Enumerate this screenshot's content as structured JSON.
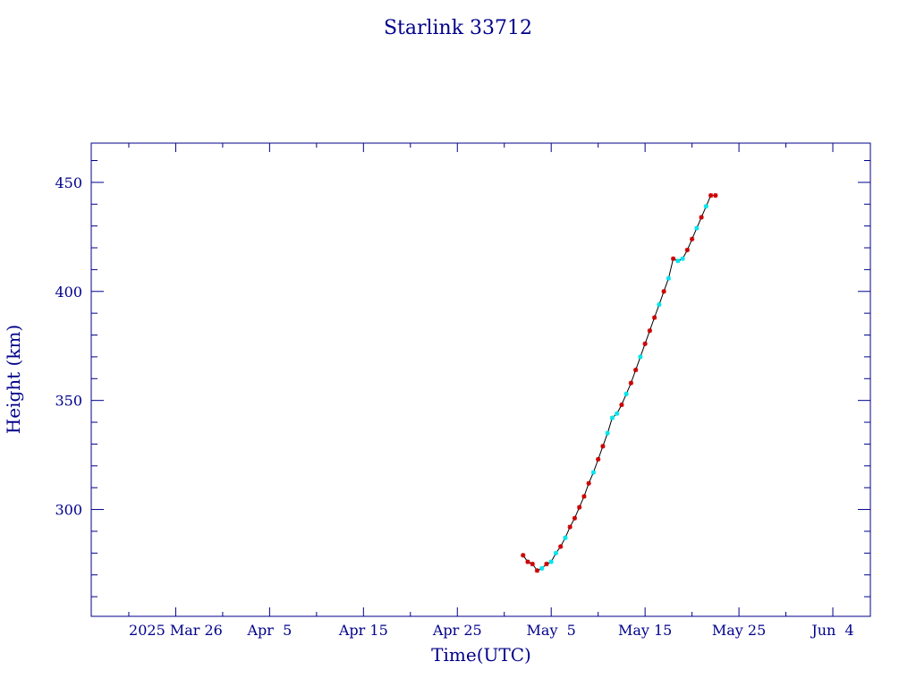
{
  "chart_data": {
    "type": "line",
    "title": "Starlink 33712",
    "xlabel": "Time(UTC)",
    "ylabel": "Height (km)",
    "x_ticks": [
      {
        "date": "2025-03-26",
        "label": "2025 Mar 26"
      },
      {
        "date": "2025-04-05",
        "label": "Apr  5"
      },
      {
        "date": "2025-04-15",
        "label": "Apr 15"
      },
      {
        "date": "2025-04-25",
        "label": "Apr 25"
      },
      {
        "date": "2025-05-05",
        "label": "May  5"
      },
      {
        "date": "2025-05-15",
        "label": "May 15"
      },
      {
        "date": "2025-05-25",
        "label": "May 25"
      },
      {
        "date": "2025-06-04",
        "label": "Jun  4"
      }
    ],
    "y_ticks": [
      300,
      350,
      400,
      450
    ],
    "xlim": [
      "2025-03-17",
      "2025-06-08"
    ],
    "ylim": [
      251,
      468
    ],
    "grid": false,
    "colors": {
      "axis": "#00008b",
      "line": "#000000",
      "marker_red": "#cc0000",
      "marker_cyan": "#00e5ee"
    },
    "series": [
      {
        "points": [
          {
            "x": "2025-05-02T00:00",
            "y": 279,
            "m": "r"
          },
          {
            "x": "2025-05-02T12:00",
            "y": 276,
            "m": "r"
          },
          {
            "x": "2025-05-03T00:00",
            "y": 275,
            "m": "r"
          },
          {
            "x": "2025-05-03T12:00",
            "y": 272,
            "m": "r"
          },
          {
            "x": "2025-05-04T00:00",
            "y": 273,
            "m": "c"
          },
          {
            "x": "2025-05-04T12:00",
            "y": 275,
            "m": "r"
          },
          {
            "x": "2025-05-05T00:00",
            "y": 276,
            "m": "c"
          },
          {
            "x": "2025-05-05T12:00",
            "y": 280,
            "m": "c"
          },
          {
            "x": "2025-05-06T00:00",
            "y": 283,
            "m": "r"
          },
          {
            "x": "2025-05-06T12:00",
            "y": 287,
            "m": "c"
          },
          {
            "x": "2025-05-07T00:00",
            "y": 292,
            "m": "r"
          },
          {
            "x": "2025-05-07T12:00",
            "y": 296,
            "m": "r"
          },
          {
            "x": "2025-05-08T00:00",
            "y": 301,
            "m": "r"
          },
          {
            "x": "2025-05-08T12:00",
            "y": 306,
            "m": "r"
          },
          {
            "x": "2025-05-09T00:00",
            "y": 312,
            "m": "r"
          },
          {
            "x": "2025-05-09T12:00",
            "y": 317,
            "m": "c"
          },
          {
            "x": "2025-05-10T00:00",
            "y": 323,
            "m": "r"
          },
          {
            "x": "2025-05-10T12:00",
            "y": 329,
            "m": "r"
          },
          {
            "x": "2025-05-11T00:00",
            "y": 335,
            "m": "c"
          },
          {
            "x": "2025-05-11T12:00",
            "y": 342,
            "m": "c"
          },
          {
            "x": "2025-05-12T00:00",
            "y": 344,
            "m": "c"
          },
          {
            "x": "2025-05-12T12:00",
            "y": 348,
            "m": "r"
          },
          {
            "x": "2025-05-13T00:00",
            "y": 353,
            "m": "c"
          },
          {
            "x": "2025-05-13T12:00",
            "y": 358,
            "m": "r"
          },
          {
            "x": "2025-05-14T00:00",
            "y": 364,
            "m": "r"
          },
          {
            "x": "2025-05-14T12:00",
            "y": 370,
            "m": "c"
          },
          {
            "x": "2025-05-15T00:00",
            "y": 376,
            "m": "r"
          },
          {
            "x": "2025-05-15T12:00",
            "y": 382,
            "m": "r"
          },
          {
            "x": "2025-05-16T00:00",
            "y": 388,
            "m": "r"
          },
          {
            "x": "2025-05-16T12:00",
            "y": 394,
            "m": "c"
          },
          {
            "x": "2025-05-17T00:00",
            "y": 400,
            "m": "r"
          },
          {
            "x": "2025-05-17T12:00",
            "y": 406,
            "m": "c"
          },
          {
            "x": "2025-05-18T00:00",
            "y": 415,
            "m": "r"
          },
          {
            "x": "2025-05-18T12:00",
            "y": 414,
            "m": "c"
          },
          {
            "x": "2025-05-19T00:00",
            "y": 415,
            "m": "c"
          },
          {
            "x": "2025-05-19T12:00",
            "y": 419,
            "m": "r"
          },
          {
            "x": "2025-05-20T00:00",
            "y": 424,
            "m": "r"
          },
          {
            "x": "2025-05-20T12:00",
            "y": 429,
            "m": "c"
          },
          {
            "x": "2025-05-21T00:00",
            "y": 434,
            "m": "r"
          },
          {
            "x": "2025-05-21T12:00",
            "y": 439,
            "m": "c"
          },
          {
            "x": "2025-05-22T00:00",
            "y": 444,
            "m": "r"
          },
          {
            "x": "2025-05-22T12:00",
            "y": 444,
            "m": "r"
          }
        ]
      }
    ]
  }
}
